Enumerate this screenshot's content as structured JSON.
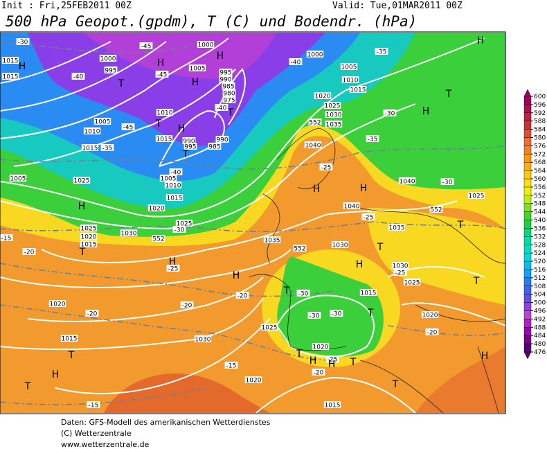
{
  "header": {
    "init": "Init : Fri,25FEB2011 00Z",
    "valid": "Valid: Tue,01MAR2011 00Z",
    "title": "500 hPa Geopot.(gpdm), T (C) und Bodendr. (hPa)"
  },
  "map_labels": [
    "-30",
    "1015",
    "H",
    "1015",
    "1000",
    "995",
    "T",
    "-40",
    "-45",
    "H",
    "-45",
    "H",
    "1000",
    "H",
    "1005",
    "995",
    "990",
    "985",
    "980",
    "975",
    "T",
    "1010",
    "T",
    "H",
    "1015",
    "990",
    "995",
    "T",
    "985",
    "990",
    "1005",
    "1010",
    "1015",
    "-40",
    "1020",
    "-35",
    "1015",
    "1010",
    "1005",
    "-45",
    "1005",
    "H",
    "1025",
    "1025",
    "1020",
    "1015",
    "T",
    "-20",
    "-15",
    "1030",
    "-30",
    "1025",
    "552",
    "H",
    "-25",
    "H",
    "-20",
    "-20",
    "1020",
    "-20",
    "1015",
    "T",
    "H",
    "T",
    "1030",
    "-15",
    "1020",
    "-15",
    "1015",
    "T",
    "H",
    "-20",
    "1020",
    "T",
    "T",
    "1025",
    "552",
    "1040",
    "-30",
    "1040",
    "-25",
    "1035",
    "1035",
    "552",
    "1030",
    "T",
    "H",
    "1030",
    "-25",
    "1025",
    "1015",
    "-30",
    "T",
    "-30",
    "-30",
    "T",
    "1025",
    "1020",
    "-25",
    "T",
    "H",
    "H",
    "T",
    "-20",
    "1000",
    "1005",
    "1010",
    "1015",
    "1020",
    "1025",
    "1030",
    "1035",
    "552",
    "1040",
    "-25",
    "H",
    "H",
    "-30",
    "-35",
    "H",
    "T",
    "H",
    "-35",
    "-40",
    "-40"
  ],
  "colorbar": {
    "levels": [
      476,
      480,
      484,
      488,
      492,
      496,
      500,
      504,
      508,
      512,
      516,
      520,
      524,
      528,
      532,
      536,
      540,
      544,
      548,
      552,
      556,
      560,
      564,
      568,
      572,
      576,
      580,
      584,
      588,
      592,
      596,
      600
    ],
    "colors": [
      "#5a0070",
      "#7a0090",
      "#9a00b0",
      "#b020c8",
      "#c040e0",
      "#9040e8",
      "#6050f0",
      "#4060f8",
      "#2080ff",
      "#10a0ff",
      "#00c0f0",
      "#00d8e0",
      "#00e0c0",
      "#00e0a0",
      "#00d880",
      "#20d040",
      "#40d820",
      "#80e020",
      "#c0f000",
      "#f0f000",
      "#ffe000",
      "#ffc800",
      "#ffb000",
      "#ff9800",
      "#f88020",
      "#f07030",
      "#e05030",
      "#d03030",
      "#c02040",
      "#b01050",
      "#a00060"
    ]
  },
  "footer": {
    "line1": "Daten: GFS-Modell des amerikanischen Wetterdienstes",
    "line2": "(C) Wetterzentrale",
    "line3": "www.wetterzentrale.de"
  }
}
